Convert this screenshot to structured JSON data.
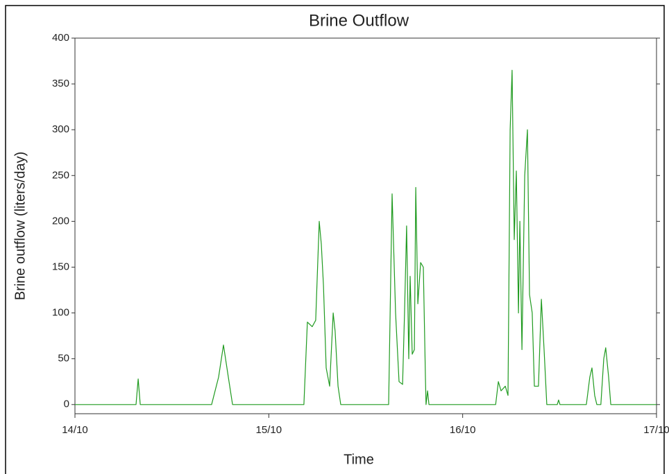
{
  "chart_data": {
    "type": "line",
    "title": "Brine Outflow",
    "x_label": "Time",
    "y_label": "Brine outflow (liters/day)",
    "xlim": [
      0,
      3
    ],
    "xticks": [
      {
        "value": 0,
        "label": "14/10"
      },
      {
        "value": 1,
        "label": "15/10"
      },
      {
        "value": 2,
        "label": "16/10"
      },
      {
        "value": 3,
        "label": "17/10"
      }
    ],
    "ylim": [
      -10,
      400
    ],
    "yticks": [
      0,
      50,
      100,
      150,
      200,
      250,
      300,
      350,
      400
    ],
    "grid": false,
    "series": [
      {
        "name": "Brine outflow",
        "color": "#1f9a1f",
        "x": [
          0,
          0.294,
          0.315,
          0.326,
          0.337,
          0.705,
          0.741,
          0.766,
          0.791,
          0.813,
          1.181,
          1.199,
          1.224,
          1.242,
          1.26,
          1.271,
          1.282,
          1.296,
          1.314,
          1.332,
          1.342,
          1.357,
          1.371,
          1.618,
          1.636,
          1.654,
          1.672,
          1.69,
          1.7,
          1.711,
          1.722,
          1.729,
          1.74,
          1.751,
          1.758,
          1.769,
          1.783,
          1.797,
          1.808,
          1.811,
          1.819,
          1.826,
          2.17,
          2.184,
          2.198,
          2.22,
          2.234,
          2.245,
          2.255,
          2.266,
          2.277,
          2.288,
          2.295,
          2.306,
          2.32,
          2.334,
          2.345,
          2.359,
          2.37,
          2.391,
          2.406,
          2.42,
          2.434,
          2.488,
          2.495,
          2.502,
          2.638,
          2.656,
          2.667,
          2.681,
          2.692,
          2.713,
          2.728,
          2.738,
          2.753,
          2.764,
          3
        ],
        "values": [
          0,
          0,
          0,
          28,
          0,
          0,
          30,
          65,
          30,
          0,
          0,
          90,
          85,
          92,
          200,
          175,
          130,
          40,
          20,
          100,
          80,
          20,
          0,
          0,
          230,
          100,
          25,
          22,
          100,
          195,
          50,
          140,
          55,
          60,
          237,
          110,
          155,
          150,
          30,
          0,
          15,
          0,
          0,
          25,
          15,
          20,
          10,
          300,
          365,
          180,
          255,
          100,
          200,
          60,
          250,
          300,
          120,
          100,
          20,
          20,
          115,
          60,
          0,
          0,
          5,
          0,
          0,
          30,
          40,
          10,
          0,
          0,
          50,
          62,
          30,
          0,
          0
        ]
      }
    ]
  }
}
